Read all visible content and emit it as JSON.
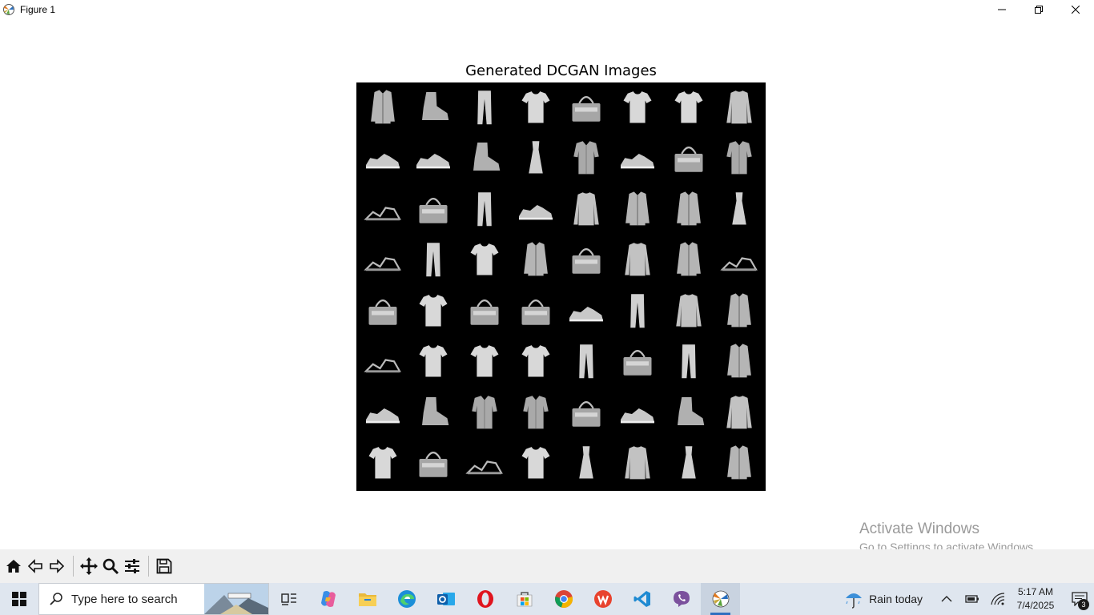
{
  "window": {
    "title": "Figure 1"
  },
  "figure": {
    "title": "Generated DCGAN Images",
    "grid": {
      "rows": 8,
      "cols": 8,
      "items": [
        "coat",
        "ankle-boot",
        "trouser",
        "tshirt",
        "bag",
        "tshirt",
        "tshirt",
        "pullover",
        "sneaker",
        "sneaker",
        "ankle-boot",
        "dress",
        "shirt",
        "sneaker",
        "bag",
        "shirt",
        "sandal",
        "bag",
        "trouser",
        "sneaker",
        "pullover",
        "coat",
        "coat",
        "dress",
        "sandal",
        "trouser",
        "tshirt",
        "coat",
        "bag",
        "pullover",
        "coat",
        "sandal",
        "bag",
        "tshirt",
        "bag",
        "bag",
        "sneaker",
        "trouser",
        "pullover",
        "coat",
        "sandal",
        "tshirt",
        "tshirt",
        "tshirt",
        "trouser",
        "bag",
        "trouser",
        "coat",
        "sneaker",
        "ankle-boot",
        "shirt",
        "shirt",
        "bag",
        "sneaker",
        "ankle-boot",
        "pullover",
        "tshirt",
        "bag",
        "sandal",
        "tshirt",
        "dress",
        "pullover",
        "dress",
        "coat"
      ]
    }
  },
  "watermark": {
    "line1": "Activate Windows",
    "line2": "Go to Settings to activate Windows."
  },
  "toolbar": {
    "tools": [
      "home-icon",
      "back-icon",
      "forward-icon",
      "pan-icon",
      "zoom-icon",
      "configure-subplots-icon",
      "save-icon"
    ]
  },
  "taskbar": {
    "search_placeholder": "Type here to search",
    "weather": "Rain today",
    "time": "5:17 AM",
    "date": "7/4/2025",
    "notification_count": "3"
  }
}
